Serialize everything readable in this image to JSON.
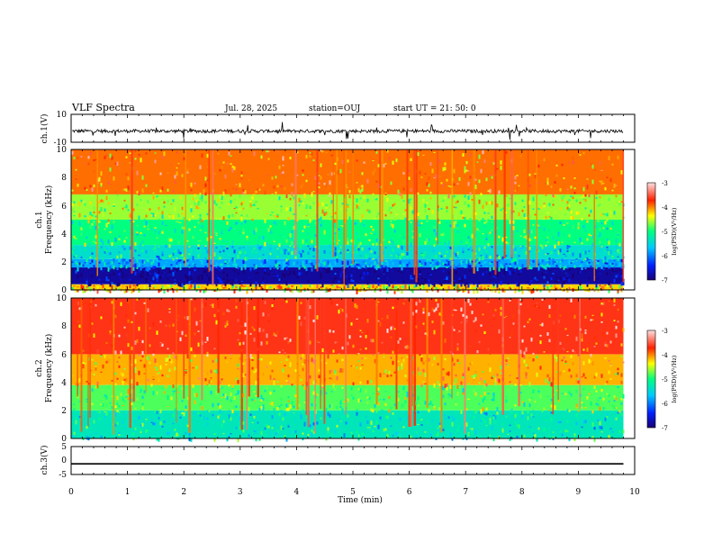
{
  "header": {
    "title": "VLF Spectra",
    "date": "Jul. 28, 2025",
    "station": "station=OUJ",
    "start_ut": "start UT =  21: 50: 0"
  },
  "chart_data": [
    {
      "type": "line",
      "panel": "ch1-waveform",
      "ylabel": "ch.1(V)",
      "ylim": [
        -10,
        10
      ],
      "y_ticks": [
        "10",
        "-10"
      ],
      "description_level": "noise centered near -2 V with frequent spikes",
      "baseline": -2,
      "xlim": [
        0,
        10
      ]
    },
    {
      "type": "heatmap",
      "panel": "ch1-spectrogram",
      "ylabel_line1": "ch.1",
      "ylabel_line2": "Frequency (kHz)",
      "ylim": [
        0,
        10
      ],
      "y_ticks": [
        "0",
        "2",
        "4",
        "6",
        "8",
        "10"
      ],
      "xlim": [
        0,
        9.8
      ],
      "colorbar": {
        "label": "log(PSD)(V²/Hz)",
        "range": [
          -7,
          -3
        ],
        "ticks": [
          "-3",
          "-4",
          "-5",
          "-6",
          "-7"
        ]
      },
      "bands_khz": [
        {
          "from": 0.0,
          "to": 0.4,
          "level": -4.2
        },
        {
          "from": 0.4,
          "to": 1.6,
          "level": -6.8
        },
        {
          "from": 1.6,
          "to": 2.2,
          "level": -5.8
        },
        {
          "from": 2.2,
          "to": 3.2,
          "level": -5.4
        },
        {
          "from": 3.2,
          "to": 5.0,
          "level": -5.0
        },
        {
          "from": 5.0,
          "to": 6.8,
          "level": -4.6
        },
        {
          "from": 6.8,
          "to": 10.0,
          "level": -3.9
        }
      ]
    },
    {
      "type": "heatmap",
      "panel": "ch2-spectrogram",
      "ylabel_line1": "ch.2",
      "ylabel_line2": "Frequency (kHz)",
      "ylim": [
        0,
        10
      ],
      "y_ticks": [
        "0",
        "2",
        "4",
        "6",
        "8",
        "10"
      ],
      "xlim": [
        0,
        9.8
      ],
      "colorbar": {
        "label": "log(PSD)(V²/Hz)",
        "range": [
          -7,
          -3
        ],
        "ticks": [
          "-3",
          "-4",
          "-5",
          "-6",
          "-7"
        ]
      },
      "bands_khz": [
        {
          "from": 0.0,
          "to": 2.0,
          "level": -5.3
        },
        {
          "from": 2.0,
          "to": 3.8,
          "level": -4.8
        },
        {
          "from": 3.8,
          "to": 6.0,
          "level": -4.1
        },
        {
          "from": 6.0,
          "to": 10.0,
          "level": -3.6
        }
      ]
    },
    {
      "type": "line",
      "panel": "ch3-waveform",
      "ylabel": "ch.3(V)",
      "ylim": [
        -5,
        5
      ],
      "y_ticks": [
        "5",
        "0",
        "-5"
      ],
      "values_constant": -1.2,
      "xlim": [
        0,
        9.8
      ]
    }
  ],
  "x_axis": {
    "label": "Time (min)",
    "range": [
      0,
      10
    ],
    "ticks": [
      "0",
      "1",
      "2",
      "3",
      "4",
      "5",
      "6",
      "7",
      "8",
      "9",
      "10"
    ]
  },
  "colors": {
    "scale": [
      "#1a0072",
      "#0020ff",
      "#00c8ff",
      "#00ff80",
      "#ffff00",
      "#ff2000",
      "#ffe0e0"
    ]
  }
}
